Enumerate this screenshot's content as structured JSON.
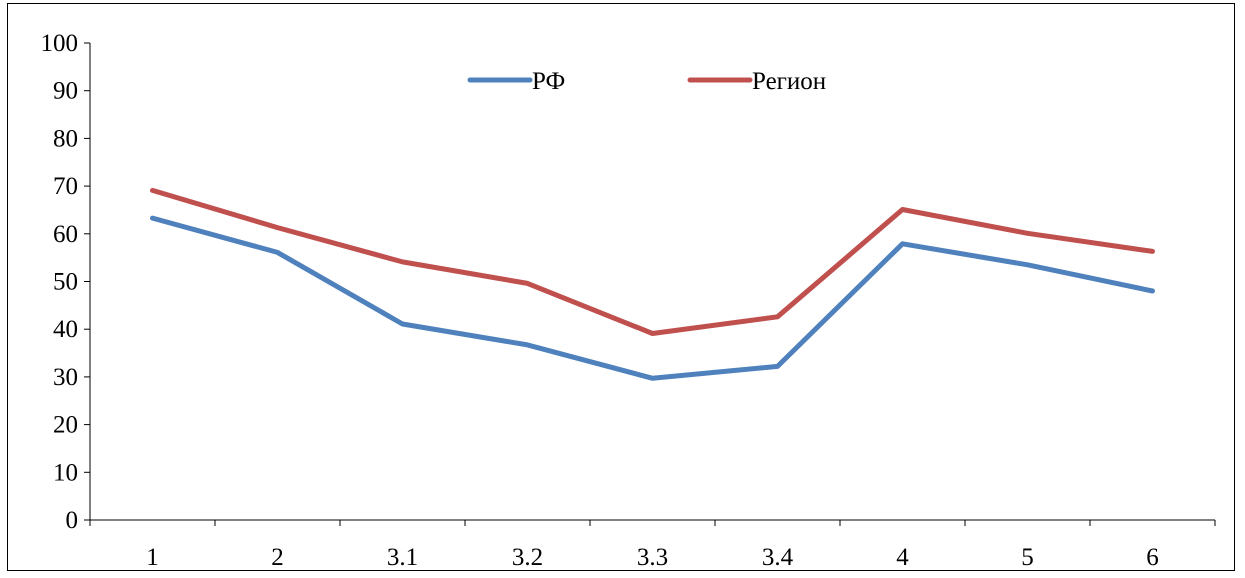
{
  "chart_data": {
    "type": "line",
    "categories": [
      "1",
      "2",
      "3.1",
      "3.2",
      "3.3",
      "3.4",
      "4",
      "5",
      "6"
    ],
    "series": [
      {
        "name": "РФ",
        "color": "#4f81bd",
        "values": [
          63.3,
          56.1,
          41.1,
          36.7,
          29.7,
          32.2,
          57.9,
          53.5,
          48.0
        ]
      },
      {
        "name": "Регион",
        "color": "#c0504d",
        "values": [
          69.1,
          61.3,
          54.1,
          49.6,
          39.1,
          42.6,
          65.1,
          60.1,
          56.3
        ]
      }
    ],
    "title": "",
    "xlabel": "",
    "ylabel": "",
    "ylim": [
      0,
      100
    ],
    "yticks": [
      "0",
      "10",
      "20",
      "30",
      "40",
      "50",
      "60",
      "70",
      "80",
      "90",
      "100"
    ],
    "grid": false,
    "legend_position": "top-center"
  }
}
